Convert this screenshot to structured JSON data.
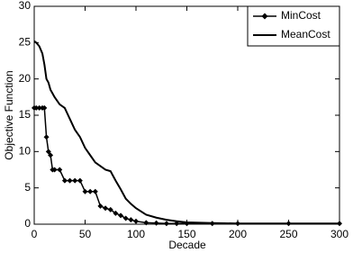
{
  "chart_data": {
    "type": "line",
    "xlabel": "Decade",
    "ylabel": "Objective Function",
    "x": [
      0,
      2,
      5,
      8,
      10,
      12,
      14,
      16,
      18,
      20,
      25,
      30,
      35,
      40,
      45,
      50,
      55,
      60,
      65,
      70,
      75,
      80,
      85,
      90,
      95,
      100,
      110,
      120,
      130,
      140,
      150,
      175,
      200,
      250,
      300
    ],
    "series": [
      {
        "name": "MinCost",
        "color": "#000000",
        "marker": "diamond",
        "values": [
          16,
          16,
          16,
          16,
          16,
          12,
          10,
          9.5,
          7.5,
          7.5,
          7.5,
          6,
          6,
          6,
          6,
          4.5,
          4.5,
          4.5,
          2.5,
          2.2,
          2,
          1.5,
          1.2,
          0.8,
          0.6,
          0.4,
          0.2,
          0.15,
          0.1,
          0.1,
          0.1,
          0.1,
          0.1,
          0.1,
          0.1
        ]
      },
      {
        "name": "MeanCost",
        "color": "#000000",
        "values": [
          25.2,
          25,
          24.5,
          23.5,
          22,
          20,
          19.5,
          18.5,
          18,
          17.5,
          16.5,
          16,
          14.5,
          13,
          12,
          10.5,
          9.5,
          8.5,
          8,
          7.5,
          7.3,
          6,
          4.8,
          3.5,
          2.8,
          2.2,
          1.3,
          0.9,
          0.6,
          0.4,
          0.25,
          0.15,
          0.1,
          0.1,
          0.1
        ]
      }
    ],
    "xlim": [
      0,
      300
    ],
    "xticks": [
      0,
      50,
      100,
      150,
      200,
      250,
      300
    ],
    "ylim": [
      0,
      30
    ],
    "yticks": [
      0,
      5,
      10,
      15,
      20,
      25,
      30
    ],
    "grid": false,
    "legend": "upper right"
  }
}
